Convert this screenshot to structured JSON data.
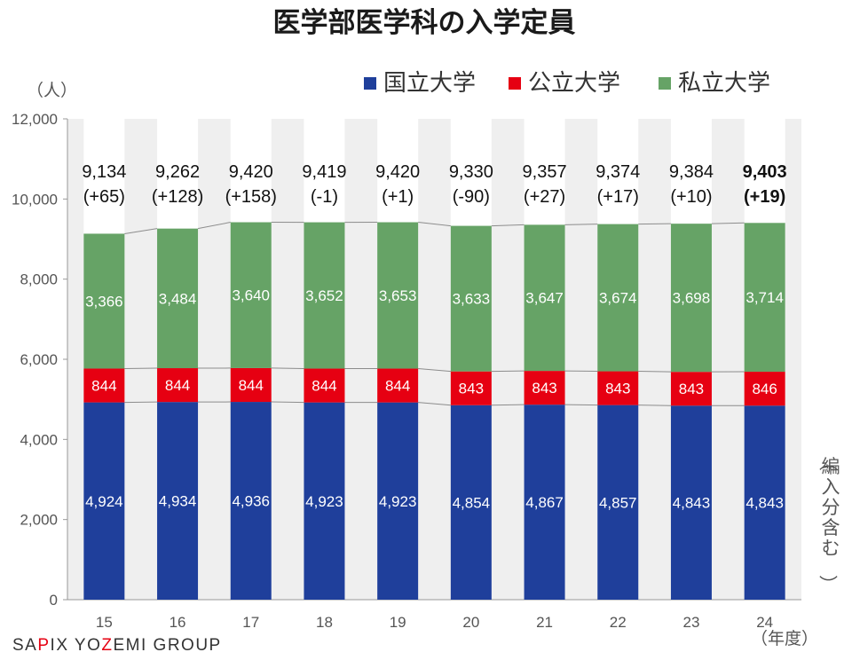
{
  "chart_data": {
    "type": "bar",
    "stacked": true,
    "title": "医学部医学科の入学定員",
    "ylabel": "（人）",
    "xlabel": "（年度）",
    "ylim": [
      0,
      12000
    ],
    "yticks": [
      "0",
      "2,000",
      "4,000",
      "6,000",
      "8,000",
      "10,000",
      "12,000"
    ],
    "ytick_values": [
      0,
      2000,
      4000,
      6000,
      8000,
      10000,
      12000
    ],
    "categories": [
      "15",
      "16",
      "17",
      "18",
      "19",
      "20",
      "21",
      "22",
      "23",
      "24"
    ],
    "series": [
      {
        "name": "国立大学",
        "color": "#1f3f9b",
        "values": [
          4924,
          4934,
          4936,
          4923,
          4923,
          4854,
          4867,
          4857,
          4843,
          4843
        ],
        "labels": [
          "4,924",
          "4,934",
          "4,936",
          "4,923",
          "4,923",
          "4,854",
          "4,867",
          "4,857",
          "4,843",
          "4,843"
        ]
      },
      {
        "name": "公立大学",
        "color": "#e60012",
        "values": [
          844,
          844,
          844,
          844,
          844,
          843,
          843,
          843,
          843,
          846
        ],
        "labels": [
          "844",
          "844",
          "844",
          "844",
          "844",
          "843",
          "843",
          "843",
          "843",
          "846"
        ]
      },
      {
        "name": "私立大学",
        "color": "#66a366",
        "values": [
          3366,
          3484,
          3640,
          3652,
          3653,
          3633,
          3647,
          3674,
          3698,
          3714
        ],
        "labels": [
          "3,366",
          "3,484",
          "3,640",
          "3,652",
          "3,653",
          "3,633",
          "3,647",
          "3,674",
          "3,698",
          "3,714"
        ]
      }
    ],
    "totals": [
      "9,134",
      "9,262",
      "9,420",
      "9,419",
      "9,420",
      "9,330",
      "9,357",
      "9,374",
      "9,384",
      "9,403"
    ],
    "changes": [
      "(+65)",
      "(+128)",
      "(+158)",
      "(-1)",
      "(+1)",
      "(-90)",
      "(+27)",
      "(+17)",
      "(+10)",
      "(+19)"
    ],
    "note": "（編入分含む）",
    "legend_position": "top-right",
    "grid": false
  },
  "brand": {
    "parts": [
      "SA",
      "P",
      "IX YO",
      "Z",
      "EMI GROUP"
    ],
    "colors": [
      "#333333",
      "#e60012",
      "#333333",
      "#e60012",
      "#333333"
    ]
  }
}
